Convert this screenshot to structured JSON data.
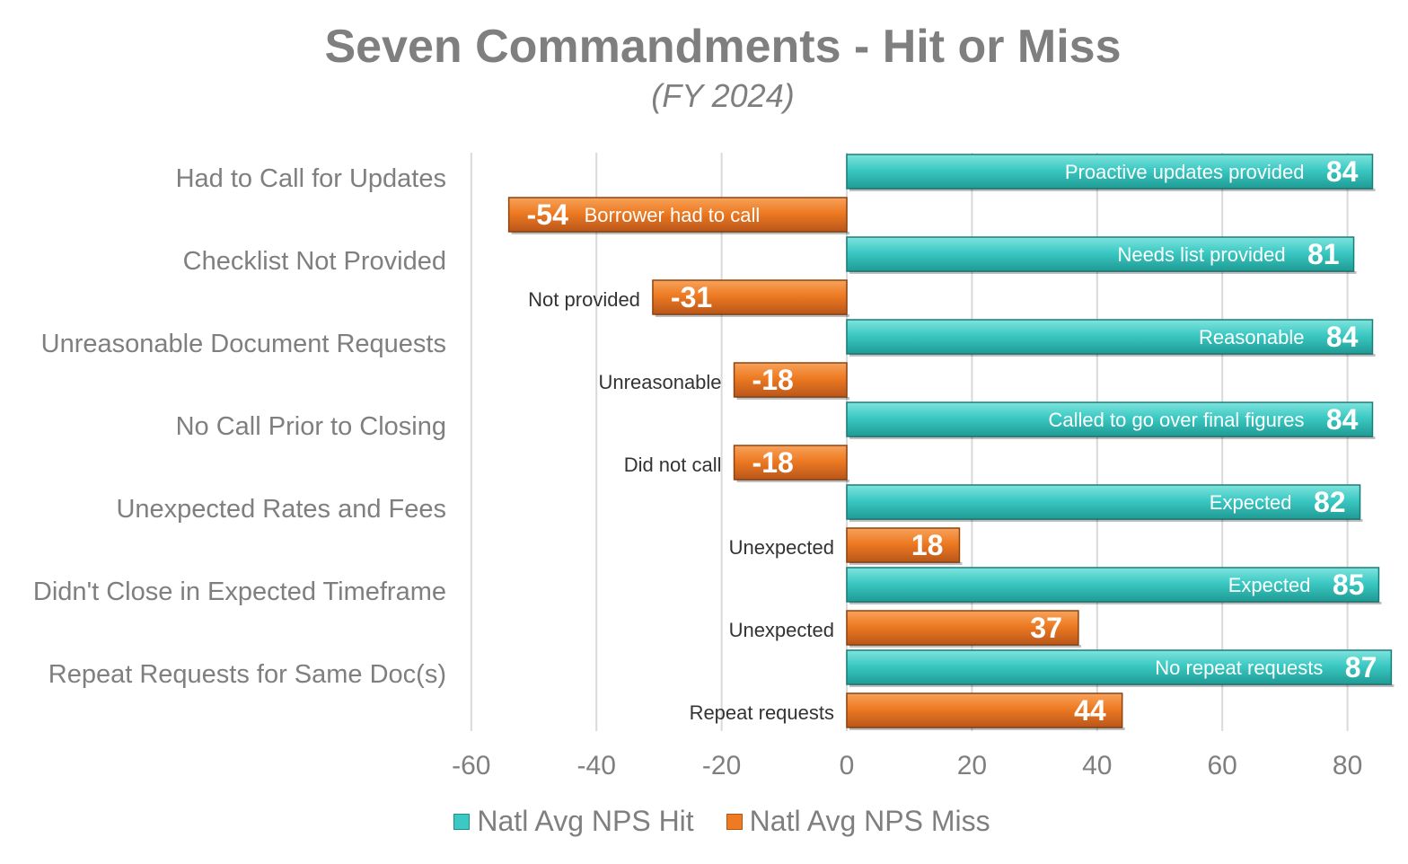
{
  "title": "Seven Commandments - Hit or Miss",
  "subtitle": "(FY 2024)",
  "colors": {
    "hit": "#3cc9c3",
    "miss": "#ee7a22",
    "grid": "#d9d9d9",
    "text": "#7f7f7f"
  },
  "legend": {
    "hit": "Natl Avg NPS Hit",
    "miss": "Natl Avg NPS Miss"
  },
  "chart_data": {
    "type": "bar",
    "orientation": "horizontal",
    "title": "Seven Commandments - Hit or Miss",
    "subtitle": "(FY 2024)",
    "categories": [
      "Had to Call for Updates",
      "Checklist Not Provided",
      "Unreasonable Document Requests",
      "No Call Prior to Closing",
      "Unexpected Rates and Fees",
      "Didn't Close in Expected Timeframe",
      "Repeat Requests for Same Doc(s)"
    ],
    "series": [
      {
        "name": "Natl Avg NPS Hit",
        "values": [
          84,
          81,
          84,
          84,
          82,
          85,
          87
        ],
        "bar_labels": [
          "Proactive updates provided",
          "Needs list provided",
          "Reasonable",
          "Called to go over final figures",
          "Expected",
          "Expected",
          "No repeat requests"
        ]
      },
      {
        "name": "Natl Avg NPS Miss",
        "values": [
          -54,
          -31,
          -18,
          -18,
          18,
          37,
          44
        ],
        "bar_labels": [
          "Borrower had to call",
          "Not provided",
          "Unreasonable",
          "Did not call",
          "Unexpected",
          "Unexpected",
          "Repeat requests"
        ]
      }
    ],
    "xlim": [
      -60,
      87
    ],
    "xticks": [
      -60,
      -40,
      -20,
      0,
      20,
      40,
      60,
      80
    ],
    "grid": true,
    "legend_position": "bottom"
  }
}
